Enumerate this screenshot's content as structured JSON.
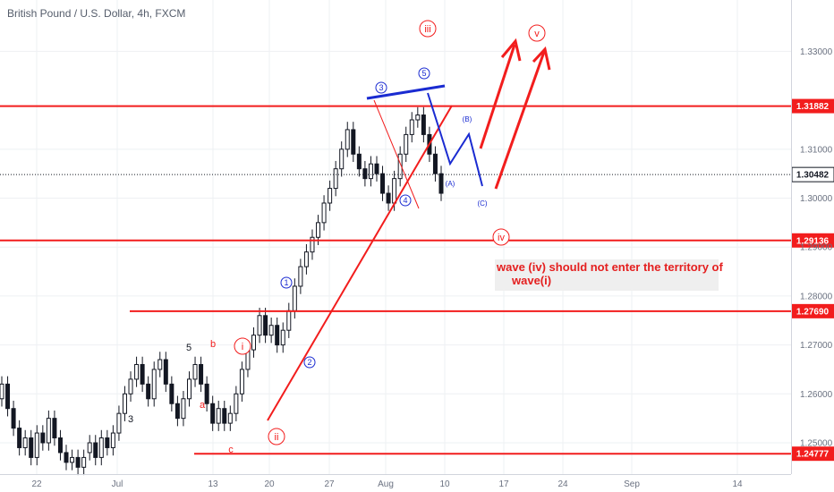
{
  "chart": {
    "symbol_title": "British Pound / U.S. Dollar, 4h, FXCM",
    "note_lines": [
      "wave (iv) should not enter the territory of",
      "wave(i)"
    ],
    "colors": {
      "red": "#f21d1d",
      "blue": "#1a2bd1",
      "candle": "#131722",
      "grid": "#eef0f3",
      "axis_text": "#6a7180",
      "current_price_bg": "#ffffff"
    }
  },
  "chart_data": {
    "type": "candlestick",
    "title": "British Pound / U.S. Dollar, 4h, FXCM",
    "x_ticks": [
      "22",
      "Jul",
      "13",
      "20",
      "27",
      "Aug",
      "10",
      "17",
      "24",
      "Sep",
      "14"
    ],
    "y_ticks": [
      "1.33000",
      "1.31000",
      "1.30000",
      "1.29000",
      "1.28000",
      "1.27000",
      "1.26000",
      "1.25000"
    ],
    "ylim": [
      1.2436,
      1.3405
    ],
    "horizontal_levels": [
      {
        "price": 1.31882,
        "label": "1.31882"
      },
      {
        "price": 1.29136,
        "label": "1.29136"
      },
      {
        "price": 1.2769,
        "label": "1.27690"
      },
      {
        "price": 1.24777,
        "label": "1.24777"
      }
    ],
    "current_price": {
      "price": 1.30482,
      "label": "1.30482"
    },
    "wave_labels": [
      {
        "text": "5",
        "style": "plain"
      },
      {
        "text": "b",
        "style": "plain"
      },
      {
        "text": "a",
        "style": "plain"
      },
      {
        "text": "c",
        "style": "plain"
      },
      {
        "text": "3",
        "style": "plain"
      },
      {
        "text": "i",
        "style": "circled"
      },
      {
        "text": "ii",
        "style": "circled"
      },
      {
        "text": "1",
        "style": "circled"
      },
      {
        "text": "2",
        "style": "circled"
      },
      {
        "text": "3",
        "style": "circled"
      },
      {
        "text": "4",
        "style": "circled"
      },
      {
        "text": "5",
        "style": "circled"
      },
      {
        "text": "iii",
        "style": "circled"
      },
      {
        "text": "(A)",
        "style": "plain"
      },
      {
        "text": "(B)",
        "style": "plain"
      },
      {
        "text": "(C)",
        "style": "plain"
      },
      {
        "text": "iv",
        "style": "circled"
      },
      {
        "text": "v",
        "style": "circled"
      }
    ],
    "candle_path_approx": [
      [
        1.259,
        1.262
      ],
      [
        1.262,
        1.257
      ],
      [
        1.257,
        1.253
      ],
      [
        1.253,
        1.249
      ],
      [
        1.249,
        1.251
      ],
      [
        1.251,
        1.247
      ],
      [
        1.247,
        1.252
      ],
      [
        1.252,
        1.25
      ],
      [
        1.25,
        1.255
      ],
      [
        1.255,
        1.251
      ],
      [
        1.251,
        1.248
      ],
      [
        1.248,
        1.246
      ],
      [
        1.246,
        1.247
      ],
      [
        1.247,
        1.245
      ],
      [
        1.245,
        1.247
      ],
      [
        1.248,
        1.25
      ],
      [
        1.25,
        1.247
      ],
      [
        1.247,
        1.251
      ],
      [
        1.251,
        1.249
      ],
      [
        1.249,
        1.252
      ],
      [
        1.252,
        1.256
      ],
      [
        1.256,
        1.26
      ],
      [
        1.26,
        1.263
      ],
      [
        1.263,
        1.266
      ],
      [
        1.266,
        1.262
      ],
      [
        1.262,
        1.259
      ],
      [
        1.259,
        1.265
      ],
      [
        1.265,
        1.267
      ],
      [
        1.267,
        1.262
      ],
      [
        1.262,
        1.258
      ],
      [
        1.258,
        1.255
      ],
      [
        1.255,
        1.259
      ],
      [
        1.259,
        1.263
      ],
      [
        1.263,
        1.266
      ],
      [
        1.266,
        1.262
      ],
      [
        1.262,
        1.258
      ],
      [
        1.258,
        1.254
      ],
      [
        1.254,
        1.257
      ],
      [
        1.257,
        1.254
      ],
      [
        1.254,
        1.256
      ],
      [
        1.256,
        1.26
      ],
      [
        1.26,
        1.265
      ],
      [
        1.265,
        1.269
      ],
      [
        1.269,
        1.272
      ],
      [
        1.272,
        1.276
      ],
      [
        1.276,
        1.272
      ],
      [
        1.272,
        1.274
      ],
      [
        1.274,
        1.27
      ],
      [
        1.27,
        1.273
      ],
      [
        1.273,
        1.277
      ],
      [
        1.277,
        1.282
      ],
      [
        1.282,
        1.286
      ],
      [
        1.286,
        1.289
      ],
      [
        1.289,
        1.292
      ],
      [
        1.292,
        1.295
      ],
      [
        1.295,
        1.299
      ],
      [
        1.299,
        1.302
      ],
      [
        1.302,
        1.306
      ],
      [
        1.306,
        1.31
      ],
      [
        1.31,
        1.314
      ],
      [
        1.314,
        1.309
      ],
      [
        1.309,
        1.306
      ],
      [
        1.306,
        1.304
      ],
      [
        1.304,
        1.307
      ],
      [
        1.307,
        1.305
      ],
      [
        1.305,
        1.301
      ],
      [
        1.301,
        1.299
      ],
      [
        1.299,
        1.304
      ],
      [
        1.304,
        1.309
      ],
      [
        1.309,
        1.313
      ],
      [
        1.313,
        1.316
      ],
      [
        1.316,
        1.317
      ],
      [
        1.317,
        1.313
      ],
      [
        1.313,
        1.309
      ],
      [
        1.309,
        1.305
      ],
      [
        1.305,
        1.301
      ]
    ]
  }
}
